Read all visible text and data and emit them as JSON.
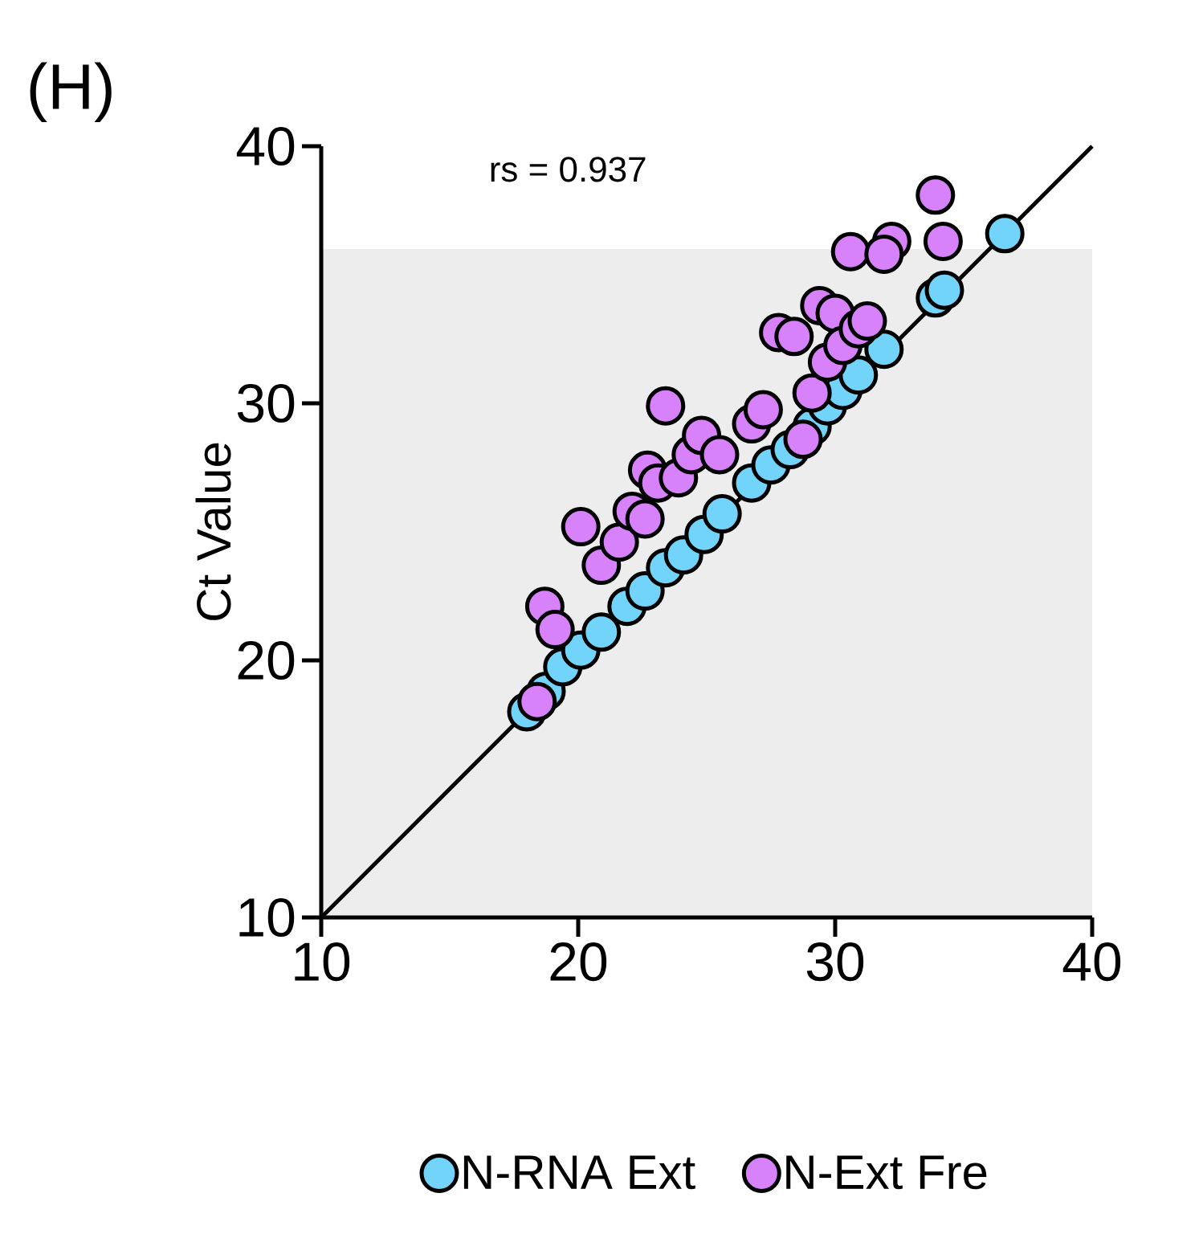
{
  "chart_data": {
    "type": "scatter",
    "title": "(H)",
    "ylabel": "Ct Value",
    "xlim": [
      10,
      40
    ],
    "ylim": [
      10,
      40
    ],
    "xticks": [
      10,
      20,
      30,
      40
    ],
    "yticks": [
      10,
      20,
      30,
      40
    ],
    "annotations": [
      "rs = 0.937"
    ],
    "bands": [
      {
        "axis": "y",
        "from": 10,
        "to": 36,
        "color": "#ededed"
      }
    ],
    "legend": "bottom",
    "grid": false,
    "series": [
      {
        "name": "N-RNA  Ext",
        "marker": "circle",
        "color": "#72d4fb",
        "x": [
          18.0,
          18.75,
          19.4,
          20.1,
          20.9,
          21.9,
          22.6,
          23.4,
          24.1,
          24.9,
          25.6,
          26.75,
          27.5,
          28.25,
          29.1,
          29.7,
          30.3,
          30.9,
          31.9,
          33.9,
          34.25,
          36.6
        ],
        "values": [
          18.0,
          18.8,
          19.75,
          20.4,
          21.1,
          22.1,
          22.7,
          23.6,
          24.1,
          24.9,
          25.7,
          26.9,
          27.6,
          28.2,
          29.1,
          29.9,
          30.5,
          31.1,
          32.1,
          34.1,
          34.4,
          36.6
        ]
      },
      {
        "name": "N-Ext Fre",
        "marker": "circle",
        "color": "#d782fa",
        "x": [
          18.4,
          18.6,
          18.7,
          19.1,
          20.1,
          20.9,
          21.6,
          22.1,
          22.6,
          22.7,
          23.1,
          23.4,
          23.9,
          24.4,
          24.8,
          25.5,
          26.75,
          27.2,
          27.8,
          28.4,
          28.75,
          29.1,
          29.4,
          30.0,
          29.7,
          30.3,
          30.6,
          30.9,
          31.25,
          32.2,
          31.9,
          33.9,
          34.2
        ],
        "values": [
          18.4,
          null,
          22.1,
          21.2,
          25.2,
          23.7,
          24.6,
          25.8,
          25.5,
          27.4,
          26.9,
          29.9,
          27.1,
          28.0,
          28.75,
          28.0,
          29.2,
          29.75,
          32.75,
          32.6,
          28.6,
          30.4,
          33.8,
          33.5,
          31.6,
          32.25,
          35.9,
          32.9,
          33.2,
          36.3,
          35.8,
          38.1,
          36.3
        ]
      },
      {
        "type": "line",
        "marker": "none",
        "color": "#000000",
        "x": [
          10,
          40
        ],
        "values": [
          10,
          40
        ]
      }
    ]
  }
}
